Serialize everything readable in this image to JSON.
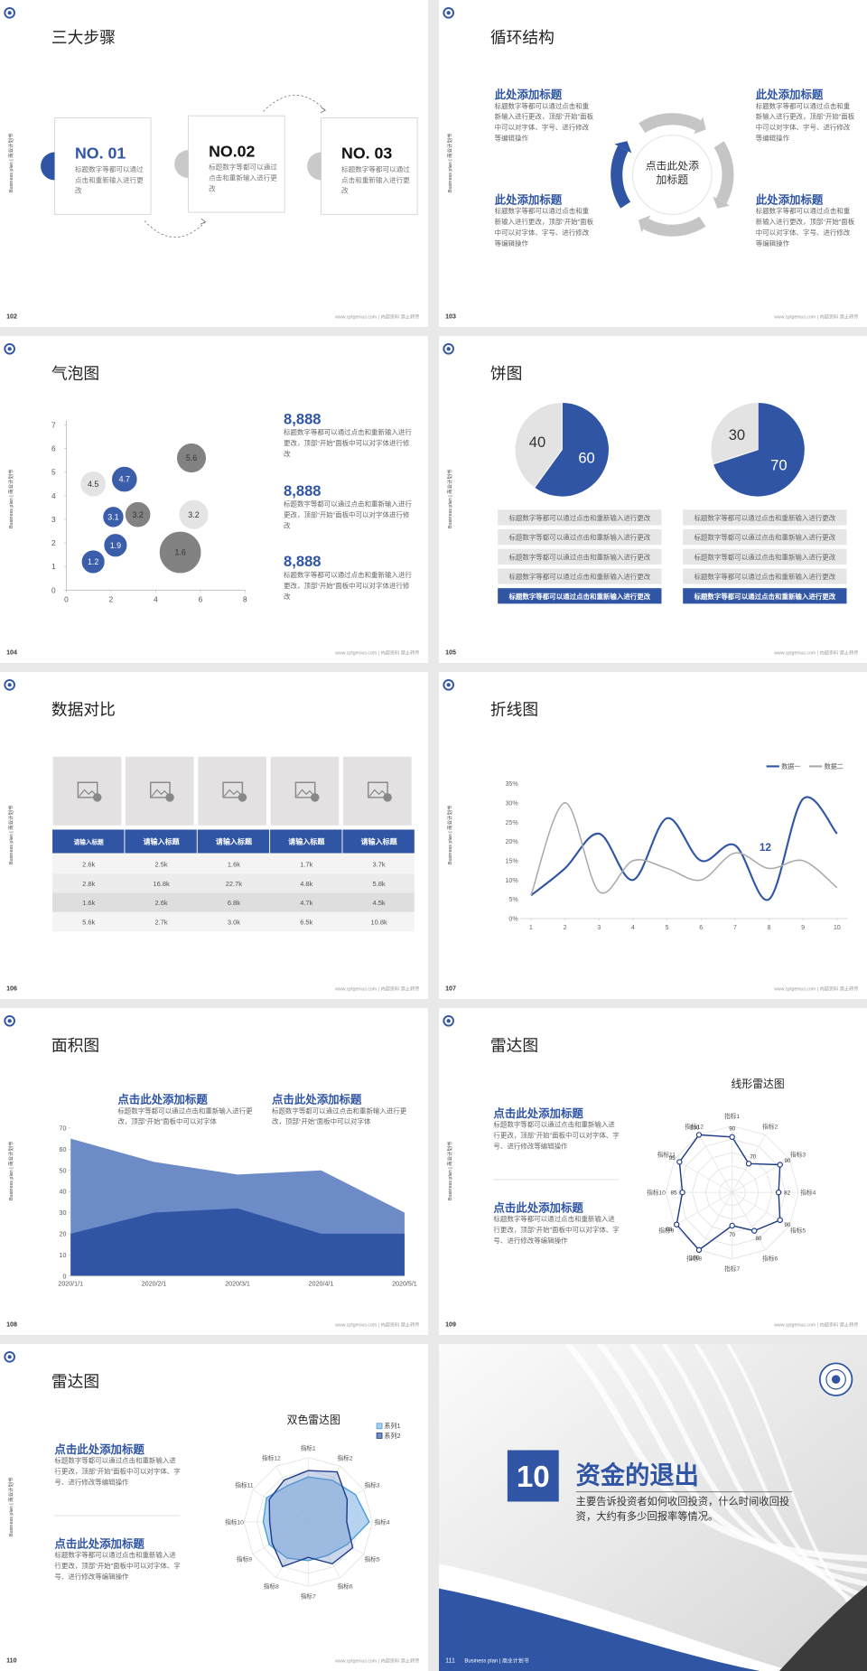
{
  "template": {
    "side_label": "Business plan | 商业计划书",
    "footer": "www.cptgenius.com | 内部资料 禁止转传"
  },
  "slides": [
    {
      "page": "102",
      "title": "三大步骤",
      "steps": [
        {
          "label": "NO. 01",
          "text": "标题数字等都可以通过点击和重新输入进行更改"
        },
        {
          "label": "NO.02",
          "text": "标题数字等都可以通过点击和重新输入进行更改"
        },
        {
          "label": "NO. 03",
          "text": "标题数字等都可以通过点击和重新输入进行更改"
        }
      ]
    },
    {
      "page": "103",
      "title": "循环结构",
      "center": "点击此处添加标题",
      "items": [
        {
          "heading": "此处添加标题",
          "text": "标题数字等都可以通过点击和重新输入进行更改，顶部“开始”面板中可以对字体、字号、进行修改等编辑操作"
        },
        {
          "heading": "此处添加标题",
          "text": "标题数字等都可以通过点击和重新输入进行更改，顶部“开始”面板中可以对字体、字号、进行修改等编辑操作"
        },
        {
          "heading": "此处添加标题",
          "text": "标题数字等都可以通过点击和重新输入进行更改，顶部“开始”面板中可以对字体、字号、进行修改等编辑操作"
        },
        {
          "heading": "此处添加标题",
          "text": "标题数字等都可以通过点击和重新输入进行更改，顶部“开始”面板中可以对字体、字号、进行修改等编辑操作"
        }
      ]
    },
    {
      "page": "104",
      "title": "气泡图",
      "chart_data": {
        "type": "bubble",
        "xlim": [
          0,
          8
        ],
        "ylim": [
          0,
          7
        ],
        "xticks": [
          0,
          2,
          4,
          6,
          8
        ],
        "yticks": [
          0,
          1,
          2,
          3,
          4,
          5,
          6,
          7
        ],
        "series": [
          {
            "color": "#7b7b7b",
            "x": [
              3.2,
              5.6,
              5.1
            ],
            "values": [
              3.2,
              5.6,
              1.6
            ],
            "sizes": [
              30,
              40,
              80
            ]
          },
          {
            "color": "#e3e3e3",
            "x": [
              1.2,
              5.7
            ],
            "values": [
              4.5,
              3.2
            ],
            "sizes": [
              30,
              40
            ]
          },
          {
            "color": "#2f55a4",
            "x": [
              1.2,
              2.2,
              2.1,
              2.6
            ],
            "values": [
              1.2,
              1.9,
              3.1,
              4.7
            ],
            "sizes": [
              25,
              25,
              20,
              30
            ]
          }
        ]
      },
      "stats": [
        {
          "value": "8,888",
          "text": "标题数字等都可以通过点击和重新输入进行更改，顶部“开始”面板中可以对字体进行修改"
        },
        {
          "value": "8,888",
          "text": "标题数字等都可以通过点击和重新输入进行更改，顶部“开始”面板中可以对字体进行修改"
        },
        {
          "value": "8,888",
          "text": "标题数字等都可以通过点击和重新输入进行更改，顶部“开始”面板中可以对字体进行修改"
        }
      ]
    },
    {
      "page": "105",
      "title": "饼图",
      "chart_data": [
        {
          "type": "pie",
          "values": [
            60,
            40
          ],
          "colors": [
            "#2f55a4",
            "#e3e3e3"
          ]
        },
        {
          "type": "pie",
          "values": [
            70,
            30
          ],
          "colors": [
            "#2f55a4",
            "#e3e3e3"
          ]
        }
      ],
      "lists": [
        [
          "标题数字等都可以通过点击和重新输入进行更改",
          "标题数字等都可以通过点击和重新输入进行更改",
          "标题数字等都可以通过点击和重新输入进行更改",
          "标题数字等都可以通过点击和重新输入进行更改",
          "标题数字等都可以通过点击和重新输入进行更改"
        ],
        [
          "标题数字等都可以通过点击和重新输入进行更改",
          "标题数字等都可以通过点击和重新输入进行更改",
          "标题数字等都可以通过点击和重新输入进行更改",
          "标题数字等都可以通过点击和重新输入进行更改",
          "标题数字等都可以通过点击和重新输入进行更改"
        ]
      ]
    },
    {
      "page": "106",
      "title": "数据对比",
      "table": {
        "header": [
          "请输入标题",
          "请输入标题",
          "请输入标题",
          "请输入标题",
          "请输入标题"
        ],
        "rows": [
          [
            "2.6k",
            "2.5k",
            "1.6k",
            "1.7k",
            "3.7k"
          ],
          [
            "2.8k",
            "16.8k",
            "22.7k",
            "4.8k",
            "5.8k"
          ],
          [
            "1.6k",
            "2.6k",
            "6.8k",
            "4.7k",
            "4.5k"
          ],
          [
            "5.6k",
            "2.7k",
            "3.0k",
            "6.5k",
            "10.8k"
          ]
        ]
      }
    },
    {
      "page": "107",
      "title": "折线图",
      "chart_data": {
        "type": "line",
        "x": [
          1,
          2,
          3,
          4,
          5,
          6,
          7,
          8,
          9,
          10
        ],
        "xlim": [
          1,
          10
        ],
        "xticks": [
          1,
          2,
          3,
          4,
          5,
          6,
          7,
          8,
          9,
          10
        ],
        "ylim": [
          0,
          35
        ],
        "yticks": [
          {
            "value": 0,
            "label": "0%"
          },
          {
            "value": 5,
            "label": "5%"
          },
          {
            "value": 10,
            "label": "10%"
          },
          {
            "value": 15,
            "label": "15%"
          },
          {
            "value": 20,
            "label": "20%"
          },
          {
            "value": 25,
            "label": "25%"
          },
          {
            "value": 30,
            "label": "30%"
          },
          {
            "value": 35,
            "label": "35%"
          }
        ],
        "grid": false,
        "legend": "top-right",
        "annotation": "12",
        "series": [
          {
            "name": "数据一",
            "color": "#2f55a4",
            "values": [
              6,
              13,
              22,
              10,
              26,
              15,
              19,
              5,
              31,
              22
            ]
          },
          {
            "name": "数据二",
            "color": "#aaaaaa",
            "values": [
              6,
              30,
              7,
              15,
              13,
              10,
              17,
              13,
              15,
              8
            ]
          }
        ]
      }
    },
    {
      "page": "108",
      "title": "面积图",
      "blocks": [
        {
          "heading": "点击此处添加标题",
          "text": "标题数字等都可以通过点击和重新输入进行更改，顶部“开始”面板中可以对字体"
        },
        {
          "heading": "点击此处添加标题",
          "text": "标题数字等都可以通过点击和重新输入进行更改，顶部“开始”面板中可以对字体"
        }
      ],
      "chart_data": {
        "type": "area",
        "categories": [
          "2020/1/1",
          "2020/2/1",
          "2020/3/1",
          "2020/4/1",
          "2020/5/1"
        ],
        "ylim": [
          0,
          70
        ],
        "yticks": [
          0,
          10,
          20,
          30,
          40,
          50,
          60,
          70
        ],
        "series": [
          {
            "color": "#6d8bc6",
            "values": [
              65,
              54,
              48,
              50,
              30
            ]
          },
          {
            "color": "#2f55a4",
            "values": [
              20,
              30,
              32,
              20,
              20
            ]
          }
        ]
      }
    },
    {
      "page": "109",
      "title": "雷达图",
      "blocks": [
        {
          "heading": "点击此处添加标题",
          "text": "标题数字等都可以通过点击和重新输入进行更改，顶部“开始”面板中可以对字体、字号、进行修改等编辑操作"
        },
        {
          "heading": "点击此处添加标题",
          "text": "标题数字等都可以通过点击和重新输入进行更改，顶部“开始”面板中可以对字体、字号、进行修改等编辑操作"
        }
      ],
      "chart_data": {
        "type": "radar",
        "title": "线形雷达图",
        "categories": [
          "指标1",
          "指标2",
          "指标3",
          "指标4",
          "指标5",
          "指标6",
          "指标7",
          "指标8",
          "指标9",
          "指标10",
          "指标11",
          "指标12"
        ],
        "rlim": [
          40,
          100
        ],
        "markers": true,
        "data_labels": true,
        "series": [
          {
            "color": "#1f3c88",
            "values": [
              90,
              70,
              90,
              82,
              90,
              80,
              70,
              100,
              98,
              85,
              95,
              100
            ]
          }
        ]
      }
    },
    {
      "page": "110",
      "title": "雷达图",
      "blocks": [
        {
          "heading": "点击此处添加标题",
          "text": "标题数字等都可以通过点击和重新输入进行更改，顶部“开始”面板中可以对字体、字号、进行修改等编辑操作"
        },
        {
          "heading": "点击此处添加标题",
          "text": "标题数字等都可以通过点击和重新输入进行更改，顶部“开始”面板中可以对字体、字号、进行修改等编辑操作"
        }
      ],
      "chart_data": {
        "type": "radar",
        "title": "双色雷达图",
        "categories": [
          "指标1",
          "指标2",
          "指标3",
          "指标4",
          "指标5",
          "指标6",
          "指标7",
          "指标8",
          "指标9",
          "指标10",
          "指标11",
          "指标12"
        ],
        "rlim": [
          0,
          100
        ],
        "legend": "top-right",
        "series": [
          {
            "name": "系列1",
            "color": "#4a9fd8",
            "fill": "#a9cbec",
            "values": [
              70,
              75,
              85,
              95,
              70,
              60,
              60,
              65,
              70,
              70,
              75,
              65
            ]
          },
          {
            "name": "系列2",
            "color": "#1f3c88",
            "fill": "#6f8cc7",
            "values": [
              80,
              90,
              70,
              60,
              80,
              75,
              55,
              80,
              65,
              60,
              70,
              75
            ]
          }
        ]
      }
    },
    {
      "page": "111",
      "section": {
        "number": "10",
        "heading": "资金的退出",
        "text": "主要告诉投资者如何收回投资，什么时间收回投资，大约有多少回报率等情况。"
      }
    }
  ]
}
